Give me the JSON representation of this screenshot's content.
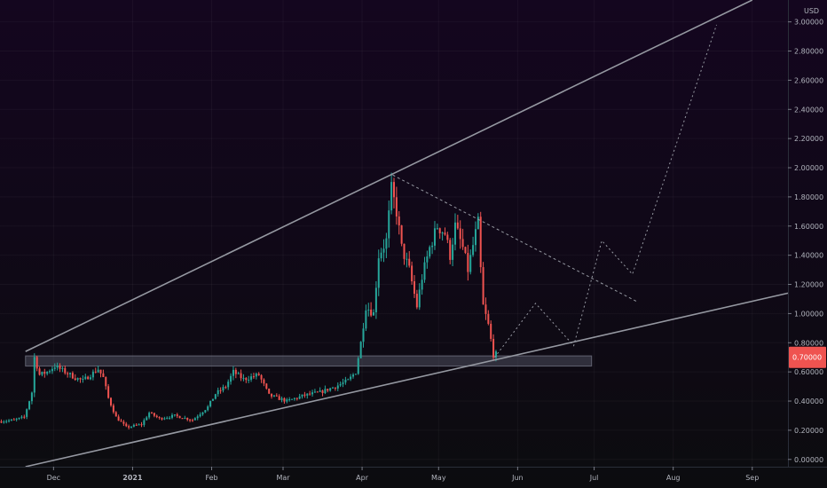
{
  "chart_data": {
    "type": "candlestick",
    "currency": "USD",
    "current_price_label": "0.70000",
    "current_price": 0.7,
    "ylim": [
      -0.05,
      3.15
    ],
    "x_range": [
      "2020-11-10",
      "2021-09-15"
    ],
    "y_ticks": [
      {
        "value": 3.0,
        "label": "3.00000"
      },
      {
        "value": 2.8,
        "label": "2.80000"
      },
      {
        "value": 2.6,
        "label": "2.60000"
      },
      {
        "value": 2.4,
        "label": "2.40000"
      },
      {
        "value": 2.2,
        "label": "2.20000"
      },
      {
        "value": 2.0,
        "label": "2.00000"
      },
      {
        "value": 1.8,
        "label": "1.80000"
      },
      {
        "value": 1.6,
        "label": "1.60000"
      },
      {
        "value": 1.4,
        "label": "1.40000"
      },
      {
        "value": 1.2,
        "label": "1.20000"
      },
      {
        "value": 1.0,
        "label": "1.00000"
      },
      {
        "value": 0.8,
        "label": "0.80000"
      },
      {
        "value": 0.6,
        "label": "0.60000"
      },
      {
        "value": 0.4,
        "label": "0.40000"
      },
      {
        "value": 0.2,
        "label": "0.20000"
      },
      {
        "value": 0.0,
        "label": "0.00000"
      }
    ],
    "x_ticks": [
      {
        "date": "2020-12-01",
        "label": "Dec",
        "bold": false
      },
      {
        "date": "2021-01-01",
        "label": "2021",
        "bold": true
      },
      {
        "date": "2021-02-01",
        "label": "Feb",
        "bold": false
      },
      {
        "date": "2021-03-01",
        "label": "Mar",
        "bold": false
      },
      {
        "date": "2021-04-01",
        "label": "Apr",
        "bold": false
      },
      {
        "date": "2021-05-01",
        "label": "May",
        "bold": false
      },
      {
        "date": "2021-06-01",
        "label": "Jun",
        "bold": false
      },
      {
        "date": "2021-07-01",
        "label": "Jul",
        "bold": false
      },
      {
        "date": "2021-08-01",
        "label": "Aug",
        "bold": false
      },
      {
        "date": "2021-09-01",
        "label": "Sep",
        "bold": false
      }
    ],
    "price_path": [
      [
        "2020-11-10",
        0.26
      ],
      [
        "2020-11-16",
        0.27
      ],
      [
        "2020-11-20",
        0.29
      ],
      [
        "2020-11-23",
        0.46
      ],
      [
        "2020-11-24",
        0.7
      ],
      [
        "2020-11-26",
        0.58
      ],
      [
        "2020-11-29",
        0.6
      ],
      [
        "2020-12-02",
        0.64
      ],
      [
        "2020-12-06",
        0.6
      ],
      [
        "2020-12-10",
        0.56
      ],
      [
        "2020-12-13",
        0.54
      ],
      [
        "2020-12-16",
        0.58
      ],
      [
        "2020-12-19",
        0.62
      ],
      [
        "2020-12-21",
        0.56
      ],
      [
        "2020-12-23",
        0.42
      ],
      [
        "2020-12-26",
        0.29
      ],
      [
        "2020-12-30",
        0.22
      ],
      [
        "2021-01-05",
        0.24
      ],
      [
        "2021-01-08",
        0.32
      ],
      [
        "2021-01-12",
        0.28
      ],
      [
        "2021-01-18",
        0.3
      ],
      [
        "2021-01-25",
        0.27
      ],
      [
        "2021-01-31",
        0.36
      ],
      [
        "2021-02-03",
        0.45
      ],
      [
        "2021-02-07",
        0.5
      ],
      [
        "2021-02-10",
        0.6
      ],
      [
        "2021-02-14",
        0.55
      ],
      [
        "2021-02-20",
        0.58
      ],
      [
        "2021-02-24",
        0.44
      ],
      [
        "2021-03-03",
        0.4
      ],
      [
        "2021-03-10",
        0.44
      ],
      [
        "2021-03-16",
        0.46
      ],
      [
        "2021-03-22",
        0.5
      ],
      [
        "2021-03-27",
        0.54
      ],
      [
        "2021-03-30",
        0.6
      ],
      [
        "2021-04-01",
        0.8
      ],
      [
        "2021-04-03",
        1.05
      ],
      [
        "2021-04-06",
        1.0
      ],
      [
        "2021-04-08",
        1.4
      ],
      [
        "2021-04-11",
        1.5
      ],
      [
        "2021-04-13",
        1.85
      ],
      [
        "2021-04-15",
        1.7
      ],
      [
        "2021-04-17",
        1.45
      ],
      [
        "2021-04-20",
        1.3
      ],
      [
        "2021-04-23",
        1.05
      ],
      [
        "2021-04-25",
        1.25
      ],
      [
        "2021-04-28",
        1.45
      ],
      [
        "2021-05-01",
        1.6
      ],
      [
        "2021-05-04",
        1.55
      ],
      [
        "2021-05-06",
        1.4
      ],
      [
        "2021-05-08",
        1.6
      ],
      [
        "2021-05-11",
        1.45
      ],
      [
        "2021-05-13",
        1.3
      ],
      [
        "2021-05-16",
        1.55
      ],
      [
        "2021-05-17",
        1.62
      ],
      [
        "2021-05-18",
        1.3
      ],
      [
        "2021-05-19",
        1.05
      ],
      [
        "2021-05-21",
        0.92
      ],
      [
        "2021-05-23",
        0.72
      ]
    ],
    "annotations": {
      "upper_trendline": [
        [
          "2020-11-20",
          0.74
        ],
        [
          "2021-09-01",
          3.15
        ]
      ],
      "lower_trendline": [
        [
          "2020-11-20",
          -0.05
        ],
        [
          "2021-09-15",
          1.14
        ]
      ],
      "descending_line": [
        [
          "2021-04-13",
          1.95
        ],
        [
          "2021-07-18",
          1.08
        ]
      ],
      "support_zone": {
        "start": "2020-11-20",
        "end": "2021-06-30",
        "low": 0.64,
        "high": 0.71
      },
      "projection_path": [
        [
          "2021-05-23",
          0.7
        ],
        [
          "2021-06-08",
          1.07
        ],
        [
          "2021-06-23",
          0.78
        ],
        [
          "2021-07-04",
          1.5
        ],
        [
          "2021-07-16",
          1.27
        ],
        [
          "2021-08-18",
          2.98
        ]
      ]
    }
  }
}
